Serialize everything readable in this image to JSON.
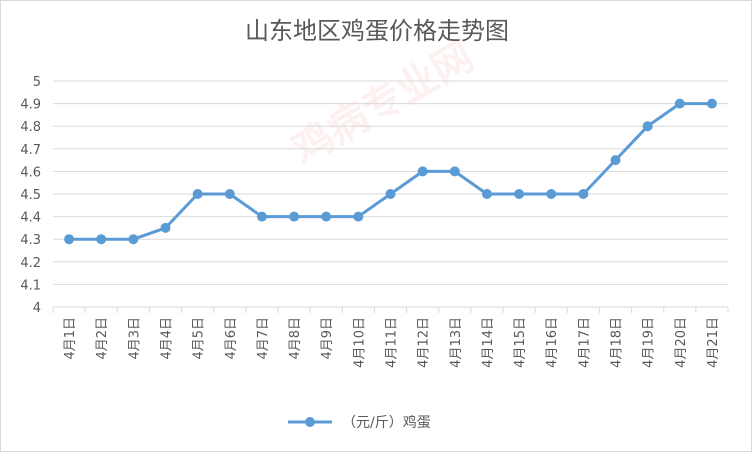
{
  "chart_data": {
    "type": "line",
    "title": "山东地区鸡蛋价格走势图",
    "categories": [
      "4月1日",
      "4月2日",
      "4月3日",
      "4月4日",
      "4月5日",
      "4月6日",
      "4月7日",
      "4月8日",
      "4月9日",
      "4月10日",
      "4月11日",
      "4月12日",
      "4月13日",
      "4月14日",
      "4月15日",
      "4月16日",
      "4月17日",
      "4月18日",
      "4月19日",
      "4月20日",
      "4月21日"
    ],
    "series": [
      {
        "name": "（元/斤）鸡蛋",
        "values": [
          4.3,
          4.3,
          4.3,
          4.35,
          4.5,
          4.5,
          4.4,
          4.4,
          4.4,
          4.4,
          4.5,
          4.6,
          4.6,
          4.5,
          4.5,
          4.5,
          4.5,
          4.65,
          4.8,
          4.9,
          4.9
        ],
        "color": "#5b9bd5"
      }
    ],
    "ylim": [
      4,
      5
    ],
    "yticks": [
      "4",
      "4.1",
      "4.2",
      "4.3",
      "4.4",
      "4.5",
      "4.6",
      "4.7",
      "4.8",
      "4.9",
      "5"
    ],
    "grid": true,
    "legend": "bottom"
  },
  "watermark": "鸡病专业网"
}
